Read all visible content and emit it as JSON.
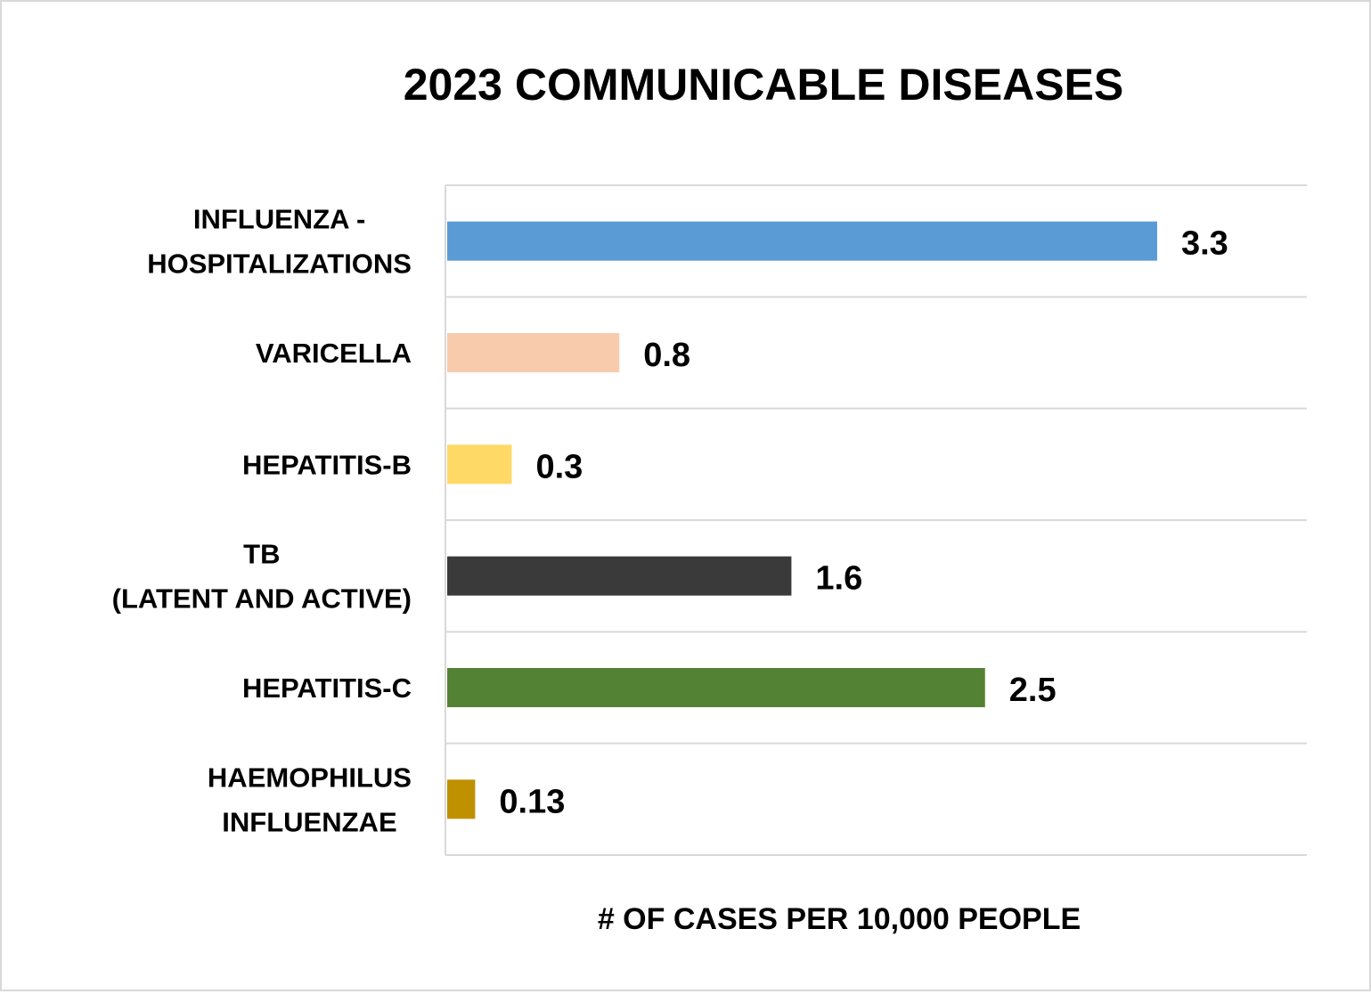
{
  "chart_data": {
    "type": "bar",
    "orientation": "horizontal",
    "title": "2023 COMMUNICABLE DISEASES",
    "xlabel": "# OF CASES PER 10,000 PEOPLE",
    "ylabel": "",
    "categories": [
      [
        "INFLUENZA -",
        "HOSPITALIZATIONS"
      ],
      [
        "VARICELLA"
      ],
      [
        "HEPATITIS-B"
      ],
      [
        "TB",
        "(LATENT AND ACTIVE)"
      ],
      [
        "HEPATITIS-C"
      ],
      [
        "HAEMOPHILUS",
        "INFLUENZAE"
      ]
    ],
    "values": [
      3.3,
      0.8,
      0.3,
      1.6,
      2.5,
      0.13
    ],
    "value_labels": [
      "3.3",
      "0.8",
      "0.3",
      "1.6",
      "2.5",
      "0.13"
    ],
    "colors": [
      "#5b9bd5",
      "#f8cbad",
      "#ffd966",
      "#3a3a3a",
      "#548235",
      "#bf9000"
    ],
    "xlim": [
      0,
      4
    ],
    "grid": true,
    "legend": "none"
  }
}
